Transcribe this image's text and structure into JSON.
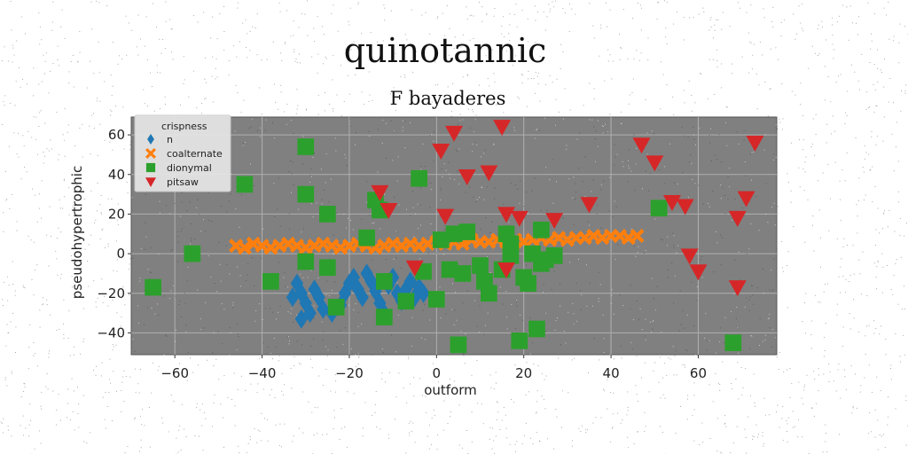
{
  "chart_data": {
    "type": "scatter",
    "title": "quinotannic",
    "subtitle": "F bayaderes",
    "xlabel": "outform",
    "ylabel": "pseudohypertrophic",
    "xlim": [
      -70,
      78
    ],
    "ylim": [
      -51,
      69
    ],
    "xticks": [
      -60,
      -40,
      -20,
      0,
      20,
      40,
      60
    ],
    "yticks": [
      -40,
      -20,
      0,
      20,
      40,
      60
    ],
    "grid": true,
    "background": "#808080",
    "legend": {
      "title": "crispness",
      "position": "top-left",
      "entries": [
        "n",
        "coalternate",
        "dionymal",
        "pitsaw"
      ]
    },
    "series": [
      {
        "name": "n",
        "marker": "diamond",
        "color": "#1f77b4",
        "points": [
          [
            -32,
            -15
          ],
          [
            -31,
            -20
          ],
          [
            -30,
            -25
          ],
          [
            -33,
            -22
          ],
          [
            -29,
            -30
          ],
          [
            -31,
            -33
          ],
          [
            -28,
            -18
          ],
          [
            -27,
            -22
          ],
          [
            -26,
            -28
          ],
          [
            -24,
            -30
          ],
          [
            -22,
            -26
          ],
          [
            -21,
            -20
          ],
          [
            -20,
            -15
          ],
          [
            -19,
            -12
          ],
          [
            -18,
            -18
          ],
          [
            -17,
            -22
          ],
          [
            -16,
            -10
          ],
          [
            -15,
            -14
          ],
          [
            -14,
            -19
          ],
          [
            -13,
            -25
          ],
          [
            -12,
            -30
          ],
          [
            -11,
            -16
          ],
          [
            -10,
            -12
          ],
          [
            -9,
            -20
          ],
          [
            -8,
            -24
          ],
          [
            -7,
            -18
          ],
          [
            -6,
            -14
          ],
          [
            -5,
            -22
          ],
          [
            -4,
            -17
          ],
          [
            -3,
            -20
          ]
        ]
      },
      {
        "name": "coalternate",
        "marker": "x",
        "color": "#ff7f0e",
        "points": [
          [
            -46,
            4
          ],
          [
            -44,
            3
          ],
          [
            -42,
            5
          ],
          [
            -40,
            4
          ],
          [
            -38,
            3
          ],
          [
            -36,
            4
          ],
          [
            -34,
            5
          ],
          [
            -32,
            4
          ],
          [
            -30,
            3
          ],
          [
            -28,
            4
          ],
          [
            -26,
            5
          ],
          [
            -24,
            4
          ],
          [
            -22,
            3
          ],
          [
            -20,
            4
          ],
          [
            -18,
            5
          ],
          [
            -16,
            4
          ],
          [
            -14,
            3
          ],
          [
            -12,
            4
          ],
          [
            -10,
            5
          ],
          [
            -8,
            4
          ],
          [
            -6,
            5
          ],
          [
            -4,
            4
          ],
          [
            -2,
            5
          ],
          [
            0,
            6
          ],
          [
            2,
            5
          ],
          [
            4,
            6
          ],
          [
            6,
            5
          ],
          [
            8,
            7
          ],
          [
            10,
            6
          ],
          [
            12,
            6
          ],
          [
            14,
            7
          ],
          [
            16,
            6
          ],
          [
            18,
            7
          ],
          [
            20,
            6
          ],
          [
            22,
            7
          ],
          [
            24,
            8
          ],
          [
            26,
            7
          ],
          [
            28,
            8
          ],
          [
            30,
            7
          ],
          [
            32,
            8
          ],
          [
            34,
            8
          ],
          [
            36,
            9
          ],
          [
            38,
            8
          ],
          [
            40,
            9
          ],
          [
            42,
            9
          ],
          [
            44,
            8
          ],
          [
            46,
            9
          ]
        ]
      },
      {
        "name": "dionymal",
        "marker": "square",
        "color": "#2ca02c",
        "points": [
          [
            -65,
            -17
          ],
          [
            -56,
            0
          ],
          [
            -44,
            35
          ],
          [
            -38,
            -14
          ],
          [
            -30,
            54
          ],
          [
            -30,
            30
          ],
          [
            -30,
            -4
          ],
          [
            -25,
            20
          ],
          [
            -25,
            -7
          ],
          [
            -23,
            -27
          ],
          [
            -16,
            8
          ],
          [
            -14,
            27
          ],
          [
            -13,
            22
          ],
          [
            -12,
            -32
          ],
          [
            -12,
            -14
          ],
          [
            -7,
            -24
          ],
          [
            -4,
            38
          ],
          [
            -3,
            -9
          ],
          [
            0,
            -23
          ],
          [
            1,
            7
          ],
          [
            3,
            -8
          ],
          [
            4,
            10
          ],
          [
            5,
            -46
          ],
          [
            6,
            -10
          ],
          [
            7,
            11
          ],
          [
            10,
            -6
          ],
          [
            11,
            -14
          ],
          [
            12,
            -20
          ],
          [
            15,
            -8
          ],
          [
            16,
            10
          ],
          [
            17,
            -1
          ],
          [
            17,
            5
          ],
          [
            19,
            -44
          ],
          [
            20,
            -12
          ],
          [
            21,
            -15
          ],
          [
            22,
            0
          ],
          [
            23,
            -38
          ],
          [
            24,
            -5
          ],
          [
            25,
            -3
          ],
          [
            27,
            -1
          ],
          [
            51,
            23
          ],
          [
            68,
            -45
          ],
          [
            24,
            12
          ]
        ]
      },
      {
        "name": "pitsaw",
        "marker": "triangle-down",
        "color": "#d62728",
        "points": [
          [
            -13,
            31
          ],
          [
            -11,
            22
          ],
          [
            -5,
            -7
          ],
          [
            1,
            52
          ],
          [
            2,
            19
          ],
          [
            4,
            61
          ],
          [
            7,
            39
          ],
          [
            12,
            41
          ],
          [
            15,
            64
          ],
          [
            16,
            20
          ],
          [
            16,
            -8
          ],
          [
            19,
            18
          ],
          [
            27,
            17
          ],
          [
            35,
            25
          ],
          [
            47,
            55
          ],
          [
            50,
            46
          ],
          [
            54,
            26
          ],
          [
            57,
            24
          ],
          [
            58,
            -1
          ],
          [
            60,
            -9
          ],
          [
            69,
            18
          ],
          [
            69,
            -17
          ],
          [
            71,
            28
          ],
          [
            73,
            56
          ]
        ]
      }
    ]
  }
}
